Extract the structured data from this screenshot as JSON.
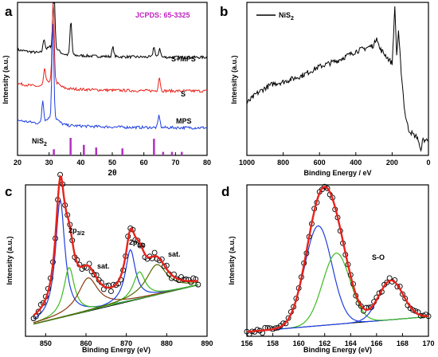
{
  "colors": {
    "black": "#000000",
    "red": "#e8221a",
    "blue": "#1f3fe0",
    "green": "#3dbb1f",
    "brown": "#8a3a10",
    "olive": "#556b00",
    "magenta": "#c020c0",
    "navy": "#102a80"
  },
  "chart_data": [
    {
      "panel": "a",
      "type": "line",
      "xlabel": "2θ",
      "ylabel": "Intensity (a.u.)",
      "xlim": [
        20,
        80
      ],
      "ticks_x": [
        "20",
        "30",
        "40",
        "50",
        "60",
        "70",
        "80"
      ],
      "annotation": "JCPDS: 65-3325",
      "series": [
        {
          "name": "S+MPS",
          "color": "#000000",
          "peaks": [
            {
              "x": 28.4,
              "h": 0.08
            },
            {
              "x": 31.5,
              "h": 0.45
            },
            {
              "x": 36.9,
              "h": 0.22
            },
            {
              "x": 50.2,
              "h": 0.06
            },
            {
              "x": 63.2,
              "h": 0.07
            },
            {
              "x": 65.0,
              "h": 0.06
            }
          ]
        },
        {
          "name": "S",
          "color": "#e8221a",
          "peaks": [
            {
              "x": 28.6,
              "h": 0.1
            },
            {
              "x": 31.3,
              "h": 0.55
            },
            {
              "x": 64.9,
              "h": 0.09
            }
          ]
        },
        {
          "name": "MPS",
          "color": "#1f3fe0",
          "peaks": [
            {
              "x": 28.0,
              "h": 0.14
            },
            {
              "x": 31.2,
              "h": 0.62
            },
            {
              "x": 64.8,
              "h": 0.08
            }
          ]
        }
      ],
      "reference": {
        "name": "NiS",
        "subscript": "2",
        "color": "#b030c0",
        "lines": [
          {
            "x": 31.5,
            "h": 0.35
          },
          {
            "x": 36.8,
            "h": 1.0
          },
          {
            "x": 41.0,
            "h": 0.6
          },
          {
            "x": 44.9,
            "h": 0.45
          },
          {
            "x": 53.2,
            "h": 0.4
          },
          {
            "x": 63.2,
            "h": 0.95
          },
          {
            "x": 66.1,
            "h": 0.2
          },
          {
            "x": 68.9,
            "h": 0.2
          },
          {
            "x": 72.0,
            "h": 0.2
          }
        ]
      }
    },
    {
      "panel": "b",
      "type": "line",
      "xlabel": "Binding Energy / eV",
      "ylabel": "Intensity (a.u.)",
      "xlim": [
        1000,
        0
      ],
      "ticks_x": [
        "1000",
        "800",
        "600",
        "400",
        "200",
        "0"
      ],
      "legend": {
        "name": "NiS",
        "subscript": "2"
      },
      "series": [
        {
          "color": "#000000",
          "points": [
            [
              1000,
              0.34
            ],
            [
              950,
              0.4
            ],
            [
              900,
              0.44
            ],
            [
              850,
              0.47
            ],
            [
              800,
              0.48
            ],
            [
              750,
              0.5
            ],
            [
              700,
              0.52
            ],
            [
              650,
              0.55
            ],
            [
              600,
              0.58
            ],
            [
              550,
              0.6
            ],
            [
              500,
              0.62
            ],
            [
              450,
              0.65
            ],
            [
              400,
              0.68
            ],
            [
              350,
              0.7
            ],
            [
              300,
              0.72
            ],
            [
              285,
              0.78
            ],
            [
              270,
              0.7
            ],
            [
              240,
              0.66
            ],
            [
              200,
              0.6
            ],
            [
              185,
              0.97
            ],
            [
              175,
              0.66
            ],
            [
              165,
              0.8
            ],
            [
              150,
              0.55
            ],
            [
              130,
              0.28
            ],
            [
              110,
              0.17
            ],
            [
              80,
              0.13
            ],
            [
              60,
              0.12
            ],
            [
              45,
              0.03
            ],
            [
              30,
              0.1
            ],
            [
              0,
              0.1
            ]
          ]
        }
      ]
    },
    {
      "panel": "c",
      "type": "line",
      "xlabel": "Binding Energy (eV)",
      "ylabel": "Intensity (a.u.)",
      "xlim": [
        845,
        890
      ],
      "ticks_x": [
        "850",
        "860",
        "870",
        "880",
        "890"
      ],
      "annotations": [
        {
          "text": "2p",
          "sub": "3/2",
          "x": 855.5,
          "y": 0.8
        },
        {
          "text": "sat.",
          "x": 862,
          "y": 0.47
        },
        {
          "text": "2p",
          "sub": "1/2",
          "x": 868,
          "y": 0.6
        },
        {
          "text": "sat.",
          "x": 877.5,
          "y": 0.52
        }
      ],
      "baseline": [
        [
          847,
          0.08
        ],
        [
          888,
          0.34
        ]
      ],
      "components": [
        {
          "color": "#1f3fe0",
          "center": 853.6,
          "height": 0.78,
          "width": 1.4
        },
        {
          "color": "#3dbb1f",
          "center": 855.8,
          "height": 0.32,
          "width": 1.6
        },
        {
          "color": "#8a3a10",
          "center": 860.5,
          "height": 0.22,
          "width": 3.0
        },
        {
          "color": "#1f3fe0",
          "center": 871.0,
          "height": 0.34,
          "width": 1.5
        },
        {
          "color": "#3dbb1f",
          "center": 873.2,
          "height": 0.18,
          "width": 1.8
        },
        {
          "color": "#556b00",
          "center": 877.5,
          "height": 0.2,
          "width": 3.2
        }
      ]
    },
    {
      "panel": "d",
      "type": "line",
      "xlabel": "Binding Energy (eV)",
      "ylabel": "Intensity (a.u.)",
      "xlim": [
        156,
        170
      ],
      "ticks_x": [
        "156",
        "158",
        "160",
        "162",
        "164",
        "166",
        "168",
        "170"
      ],
      "annotations": [
        {
          "text": "S-O",
          "x": 167.2,
          "y": 0.56
        }
      ],
      "baseline": [
        [
          156,
          0.03
        ],
        [
          170,
          0.13
        ]
      ],
      "components": [
        {
          "color": "#1f3fe0",
          "center": 161.5,
          "height": 0.66,
          "width": 1.05
        },
        {
          "color": "#3dbb1f",
          "center": 162.9,
          "height": 0.47,
          "width": 1.05
        },
        {
          "color": "#1f3fe0",
          "center": 167.1,
          "height": 0.26,
          "width": 0.95
        }
      ]
    }
  ],
  "labels": {
    "a": {
      "panel": "a",
      "ylabel": "Intensity (a.u.)",
      "xlabel": "2θ",
      "jcpds": "JCPDS: 65-3325",
      "s1": "S+MPS",
      "s2": "S",
      "s3": "MPS",
      "ref": "NiS",
      "ref_sub": "2"
    },
    "b": {
      "panel": "b",
      "ylabel": "Intensity (a.u.)",
      "xlabel": "Binding Energy / eV",
      "legend": "NiS",
      "legend_sub": "2"
    },
    "c": {
      "panel": "c",
      "ylabel": "Intensity (a.u.)",
      "xlabel": "Binding Energy (eV)",
      "p32": "2p",
      "p32_sub": "3/2",
      "sat1": "sat.",
      "p12": "2p",
      "p12_sub": "1/2",
      "sat2": "sat."
    },
    "d": {
      "panel": "d",
      "ylabel": "Intensity (a.u.)",
      "xlabel": "Binding Energy (eV)",
      "so": "S-O"
    }
  }
}
